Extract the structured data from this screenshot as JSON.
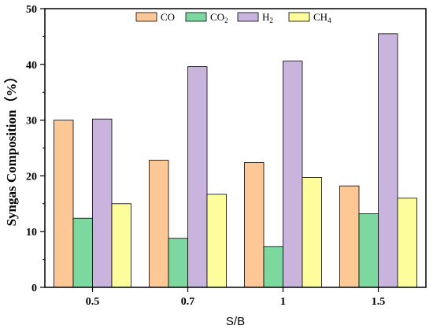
{
  "chart_data": {
    "type": "bar",
    "categories": [
      "0.5",
      "0.7",
      "1",
      "1.5"
    ],
    "series": [
      {
        "name": "CO",
        "sub": "",
        "color": "#FDC896",
        "values": [
          30.0,
          22.8,
          22.4,
          18.2
        ]
      },
      {
        "name": "CO",
        "sub": "2",
        "color": "#7DD89F",
        "values": [
          12.4,
          8.8,
          7.3,
          13.2
        ]
      },
      {
        "name": "H",
        "sub": "2",
        "color": "#C8B4DC",
        "values": [
          30.2,
          39.6,
          40.6,
          45.5
        ]
      },
      {
        "name": "CH",
        "sub": "4",
        "color": "#FDFD9B",
        "values": [
          15.0,
          16.7,
          19.7,
          16.0
        ]
      }
    ],
    "xlabel": "S/B",
    "ylabel": "Syngas Composition（%）",
    "ylim": [
      0,
      50
    ],
    "yticks": [
      0,
      10,
      20,
      30,
      40,
      50
    ],
    "legend_position": "top-center",
    "grid": false
  }
}
